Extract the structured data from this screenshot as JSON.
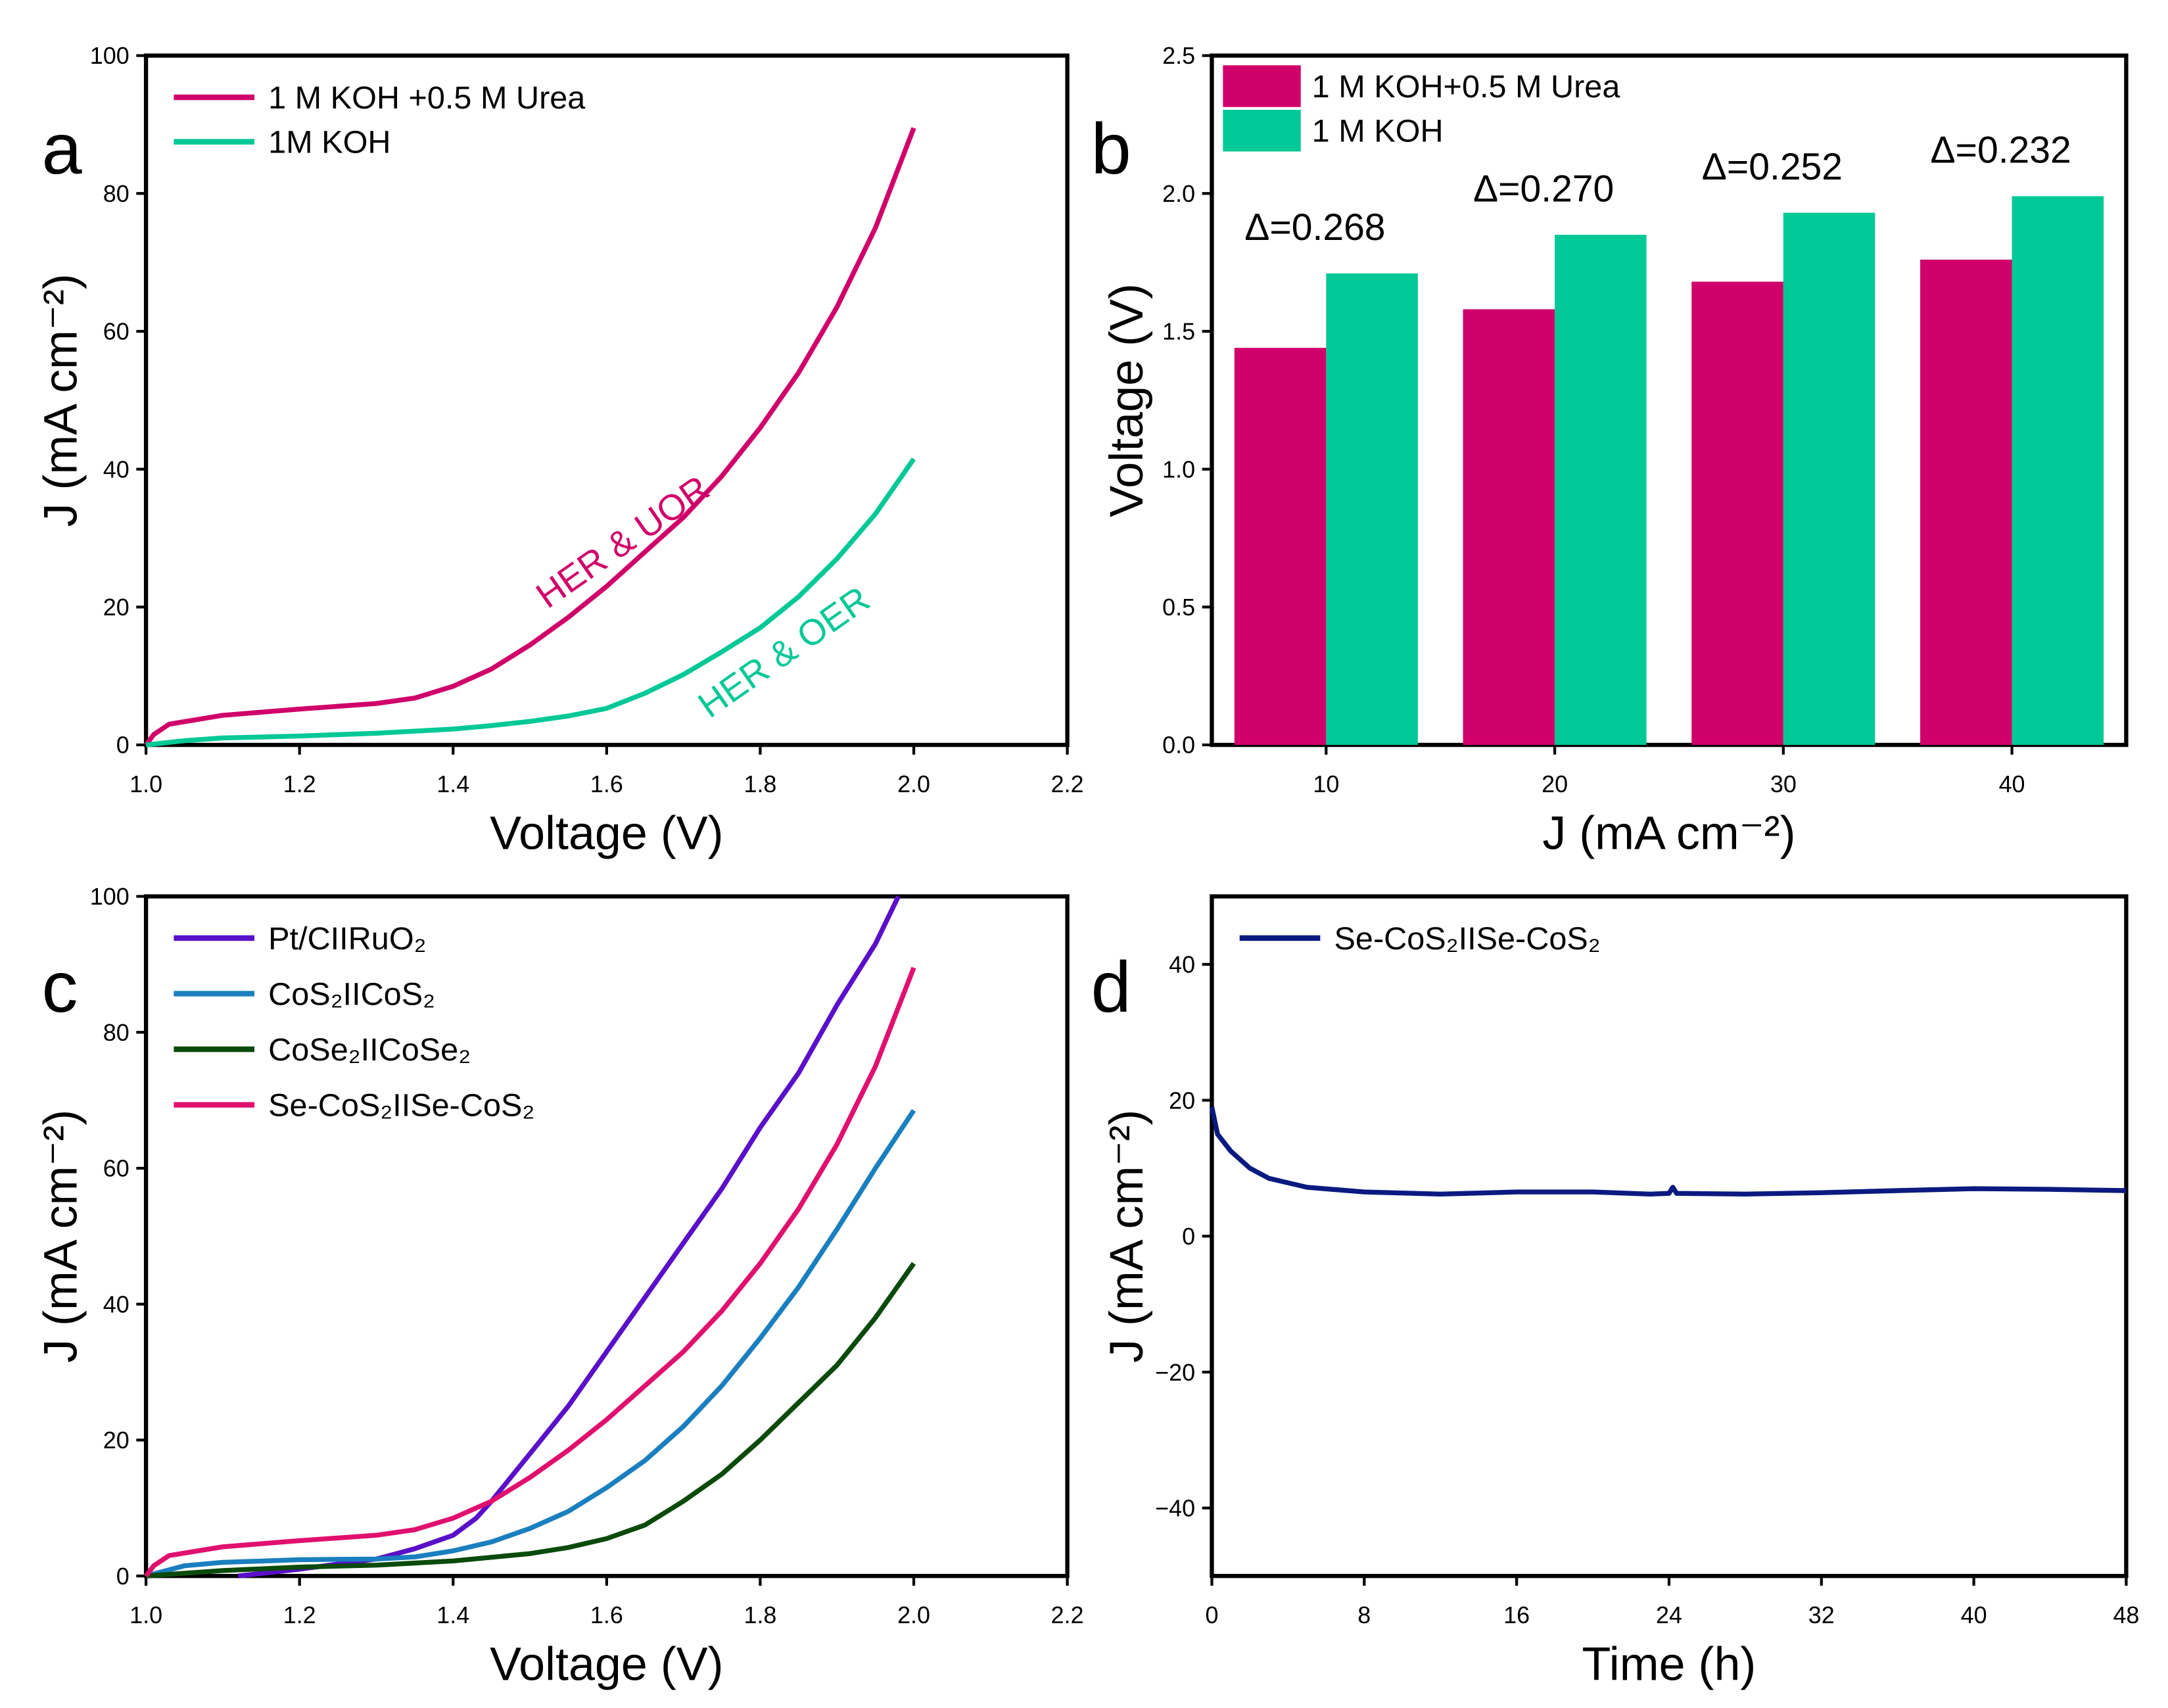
{
  "colors": {
    "urea": "#d0006a",
    "koh": "#00c896",
    "ptc": "#5a0fc8",
    "cos2": "#1a7fbf",
    "cose2": "#0a4a0a",
    "secos2": "#e0106e",
    "stability": "#0a1a80"
  },
  "chart_data": [
    {
      "id": "a",
      "panel_label": "a",
      "type": "line",
      "xlabel": "Voltage (V)",
      "ylabel": "J (mA cm⁻²)",
      "xlim": [
        1.0,
        2.2
      ],
      "ylim": [
        0,
        100
      ],
      "xticks": [
        "1.0",
        "1.2",
        "1.4",
        "1.6",
        "1.8",
        "2.0",
        "2.2"
      ],
      "xtick_values": [
        1.0,
        1.2,
        1.4,
        1.6,
        1.8,
        2.0,
        2.2
      ],
      "yticks": [
        "0",
        "20",
        "40",
        "60",
        "80",
        "100"
      ],
      "ytick_values": [
        0,
        20,
        40,
        60,
        80,
        100
      ],
      "legend": "top-left",
      "annotations": [
        {
          "text": "HER & UOR",
          "color": "#d0006a",
          "x": 1.63,
          "y": 28
        },
        {
          "text": "HER  & OER",
          "color": "#00c896",
          "x": 1.84,
          "y": 12
        }
      ],
      "series": [
        {
          "name": "1 M KOH +0.5 M Urea",
          "color": "#d0006a",
          "x": [
            1.0,
            1.01,
            1.03,
            1.1,
            1.2,
            1.3,
            1.35,
            1.4,
            1.45,
            1.5,
            1.55,
            1.6,
            1.65,
            1.7,
            1.75,
            1.8,
            1.85,
            1.9,
            1.95,
            2.0
          ],
          "y": [
            0,
            1.5,
            3,
            4.3,
            5.2,
            6,
            6.8,
            8.5,
            11,
            14.5,
            18.5,
            23,
            28,
            33,
            39,
            46,
            54,
            63.5,
            75,
            89.5
          ]
        },
        {
          "name": "1M KOH",
          "color": "#00c896",
          "x": [
            1.0,
            1.05,
            1.1,
            1.2,
            1.3,
            1.4,
            1.45,
            1.5,
            1.55,
            1.6,
            1.65,
            1.7,
            1.75,
            1.8,
            1.85,
            1.9,
            1.95,
            2.0
          ],
          "y": [
            0,
            0.6,
            1,
            1.3,
            1.7,
            2.3,
            2.8,
            3.4,
            4.2,
            5.3,
            7.5,
            10.2,
            13.5,
            17,
            21.5,
            27,
            33.5,
            41.5
          ]
        }
      ]
    },
    {
      "id": "b",
      "panel_label": "b",
      "type": "bar",
      "xlabel": "J (mA cm⁻²)",
      "ylabel": "Voltage (V)",
      "ylim": [
        0,
        2.5
      ],
      "categories": [
        "10",
        "20",
        "30",
        "40"
      ],
      "yticks": [
        "0.0",
        "0.5",
        "1.0",
        "1.5",
        "2.0",
        "2.5"
      ],
      "ytick_values": [
        0,
        0.5,
        1.0,
        1.5,
        2.0,
        2.5
      ],
      "legend": "top-left",
      "series": [
        {
          "name": "1 M KOH+0.5 M Urea",
          "color": "#d0006a",
          "values": [
            1.44,
            1.58,
            1.68,
            1.76
          ]
        },
        {
          "name": "1 M KOH",
          "color": "#00c896",
          "values": [
            1.71,
            1.85,
            1.93,
            1.99
          ]
        }
      ],
      "data_labels": [
        "Δ=0.268",
        "Δ=0.270",
        "Δ=0.252",
        "Δ=0.232"
      ]
    },
    {
      "id": "c",
      "panel_label": "c",
      "type": "line",
      "xlabel": "Voltage (V)",
      "ylabel": "J (mA cm⁻²)",
      "xlim": [
        1.0,
        2.2
      ],
      "ylim": [
        0,
        100
      ],
      "xticks": [
        "1.0",
        "1.2",
        "1.4",
        "1.6",
        "1.8",
        "2.0",
        "2.2"
      ],
      "xtick_values": [
        1.0,
        1.2,
        1.4,
        1.6,
        1.8,
        2.0,
        2.2
      ],
      "yticks": [
        "0",
        "20",
        "40",
        "60",
        "80",
        "100"
      ],
      "ytick_values": [
        0,
        20,
        40,
        60,
        80,
        100
      ],
      "legend": "top-left",
      "series": [
        {
          "name": "Pt/CIIRuO₂",
          "color": "#5a0fc8",
          "x": [
            1.12,
            1.2,
            1.3,
            1.35,
            1.4,
            1.43,
            1.45,
            1.5,
            1.55,
            1.6,
            1.65,
            1.7,
            1.75,
            1.8,
            1.85,
            1.9,
            1.95,
            1.98
          ],
          "y": [
            0,
            1,
            2.5,
            4,
            6,
            8.5,
            11,
            18,
            25,
            33,
            41,
            49,
            57,
            66,
            74,
            84,
            93,
            100
          ]
        },
        {
          "name": "CoS₂IICoS₂",
          "color": "#1a7fbf",
          "x": [
            1.0,
            1.05,
            1.1,
            1.2,
            1.3,
            1.35,
            1.4,
            1.45,
            1.5,
            1.55,
            1.6,
            1.65,
            1.7,
            1.75,
            1.8,
            1.85,
            1.9,
            1.95,
            2.0
          ],
          "y": [
            0,
            1.5,
            2,
            2.4,
            2.5,
            2.8,
            3.7,
            5,
            7,
            9.5,
            13,
            17,
            22,
            28,
            35,
            42.5,
            51,
            60,
            68.5
          ]
        },
        {
          "name": "CoSe₂IICoSe₂",
          "color": "#0a4a0a",
          "x": [
            1.0,
            1.1,
            1.2,
            1.3,
            1.4,
            1.5,
            1.55,
            1.6,
            1.65,
            1.7,
            1.75,
            1.8,
            1.85,
            1.9,
            1.95,
            2.0
          ],
          "y": [
            0,
            0.8,
            1.3,
            1.6,
            2.2,
            3.3,
            4.2,
            5.5,
            7.5,
            11,
            15,
            20,
            25.5,
            31,
            38,
            46
          ]
        },
        {
          "name": "Se-CoS₂IISe-CoS₂",
          "color": "#e0106e",
          "x": [
            1.0,
            1.01,
            1.03,
            1.1,
            1.2,
            1.3,
            1.35,
            1.4,
            1.45,
            1.5,
            1.55,
            1.6,
            1.65,
            1.7,
            1.75,
            1.8,
            1.85,
            1.9,
            1.95,
            2.0
          ],
          "y": [
            0,
            1.5,
            3,
            4.3,
            5.2,
            6,
            6.8,
            8.5,
            11,
            14.5,
            18.5,
            23,
            28,
            33,
            39,
            46,
            54,
            63.5,
            75,
            89.5
          ]
        }
      ]
    },
    {
      "id": "d",
      "panel_label": "d",
      "type": "line",
      "xlabel": "Time (h)",
      "ylabel": "J (mA cm⁻²)",
      "xlim": [
        0,
        48
      ],
      "ylim": [
        -50,
        50
      ],
      "xticks": [
        "0",
        "8",
        "16",
        "24",
        "32",
        "40",
        "48"
      ],
      "xtick_values": [
        0,
        8,
        16,
        24,
        32,
        40,
        48
      ],
      "yticks": [
        "−40",
        "−20",
        "0",
        "20",
        "40"
      ],
      "ytick_values": [
        -40,
        -20,
        0,
        20,
        40
      ],
      "legend": "top-left",
      "series": [
        {
          "name": "Se-CoS₂IISe-CoS₂",
          "color": "#0a1a80",
          "x": [
            0,
            0.3,
            1,
            2,
            3,
            5,
            8,
            12,
            16,
            20,
            23,
            24,
            24.2,
            24.4,
            28,
            32,
            36,
            40,
            44,
            48
          ],
          "y": [
            19,
            15,
            12.5,
            10,
            8.5,
            7.2,
            6.5,
            6.2,
            6.5,
            6.5,
            6.2,
            6.3,
            7.2,
            6.3,
            6.2,
            6.4,
            6.7,
            7,
            6.9,
            6.7
          ]
        }
      ]
    }
  ]
}
